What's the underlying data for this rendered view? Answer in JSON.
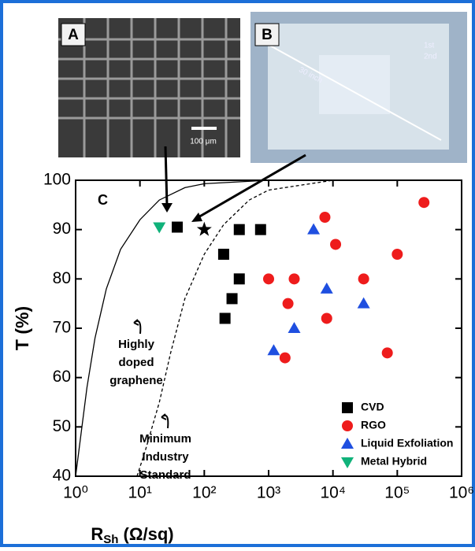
{
  "chart_data": {
    "type": "scatter",
    "panel_labels": [
      "A",
      "B",
      "C"
    ],
    "image_texts": [
      "100 μm",
      "30 inch",
      "1st",
      "2nd"
    ],
    "y_label": "T (%)",
    "x_label_parts": [
      "R",
      "Sh",
      " (Ω/sq)"
    ],
    "xlim": [
      1,
      1000000
    ],
    "xscale": "log",
    "xticks": [
      {
        "value": 1,
        "label": "10⁰"
      },
      {
        "value": 10,
        "label": "10¹"
      },
      {
        "value": 100,
        "label": "10²"
      },
      {
        "value": 1000,
        "label": "10³"
      },
      {
        "value": 10000,
        "label": "10⁴"
      },
      {
        "value": 100000,
        "label": "10⁵"
      },
      {
        "value": 1000000,
        "label": "10⁶"
      }
    ],
    "ylim": [
      40,
      100
    ],
    "yticks": [
      40,
      50,
      60,
      70,
      80,
      90,
      100
    ],
    "annotations": [
      [
        "Highly",
        "doped",
        "graphene"
      ],
      [
        "Minimum",
        "Industry",
        "Standard"
      ]
    ],
    "curves": [
      {
        "style": "solid",
        "x": [
          1,
          1.5,
          2,
          3,
          5,
          10,
          20,
          50,
          100,
          1000,
          1000000
        ],
        "y": [
          40,
          58,
          68,
          78,
          86,
          92,
          96,
          98.5,
          99.3,
          100,
          100
        ]
      },
      {
        "style": "dashed",
        "x": [
          9,
          12,
          20,
          30,
          50,
          100,
          200,
          500,
          1000,
          10000,
          1000000
        ],
        "y": [
          40,
          45,
          55,
          65,
          76,
          85,
          91,
          96,
          98,
          100,
          100
        ]
      }
    ],
    "series": [
      {
        "name": "CVD",
        "marker": "square",
        "color": "#000000",
        "x": [
          38,
          200,
          350,
          750,
          350,
          270,
          210
        ],
        "values": [
          90.5,
          85,
          90,
          90,
          80,
          76,
          72
        ]
      },
      {
        "name": "RGO",
        "marker": "circle",
        "color": "#ee1c1c",
        "x": [
          260000,
          7500,
          11000,
          100000,
          1000,
          2500,
          30000,
          2000,
          8000,
          1800,
          70000
        ],
        "values": [
          95.5,
          92.5,
          87,
          85,
          80,
          80,
          80,
          75,
          72,
          64,
          65
        ]
      },
      {
        "name": "Liquid Exfoliation",
        "marker": "triangle-up",
        "color": "#1f4fe0",
        "x": [
          5000,
          8000,
          30000,
          2500,
          1200
        ],
        "values": [
          90,
          78,
          75,
          70,
          65.5
        ]
      },
      {
        "name": "Metal Hybrid",
        "marker": "triangle-down",
        "color": "#10b27a",
        "x": [
          20
        ],
        "values": [
          90.5
        ]
      },
      {
        "marker": "star",
        "color": "#000000",
        "x": [
          100
        ],
        "values": [
          90
        ]
      }
    ]
  }
}
